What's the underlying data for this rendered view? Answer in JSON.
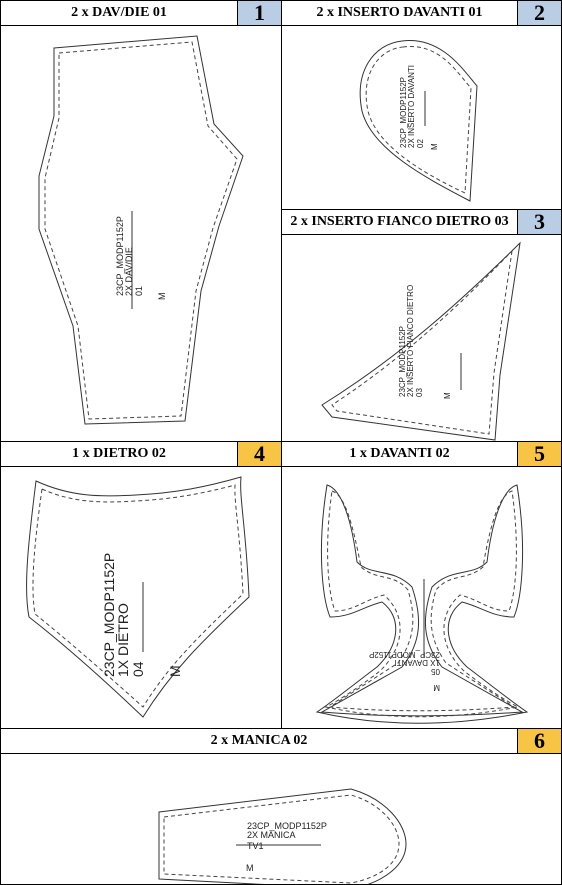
{
  "panels": [
    {
      "title": "2 x DAV/DIE 01",
      "number": "1",
      "code": "23CP_MODP1152P",
      "qty": "2X DAV/DIE",
      "piece": "01",
      "size": "M"
    },
    {
      "title": "2 x INSERTO DAVANTI 01",
      "number": "2",
      "code": "23CP_MODP1152P",
      "qty": "2X INSERTO DAVANTI",
      "piece": "02",
      "size": "M"
    },
    {
      "title": "2 x INSERTO FIANCO DIETRO 03",
      "number": "3",
      "code": "23CP_MODP1152P",
      "qty": "2X INSERTO FIANCO DIETRO",
      "piece": "03",
      "size": "M"
    },
    {
      "title": "1 x DIETRO 02",
      "number": "4",
      "code": "23CP_MODP1152P",
      "qty": "1X DIETRO",
      "piece": "04",
      "size": "M"
    },
    {
      "title": "1 x DAVANTI 02",
      "number": "5",
      "code": "23CP_MODP1152P",
      "qty": "1X DAVANTI",
      "piece": "05",
      "size": "M"
    },
    {
      "title": "2 x MANICA 02",
      "number": "6",
      "code": "23CP_MODP1152P",
      "qty": "2X MANICA",
      "piece": "TV1",
      "size": "M"
    }
  ],
  "colors": {
    "number_blue": "#b9cde5",
    "number_gold": "#f7c444"
  }
}
